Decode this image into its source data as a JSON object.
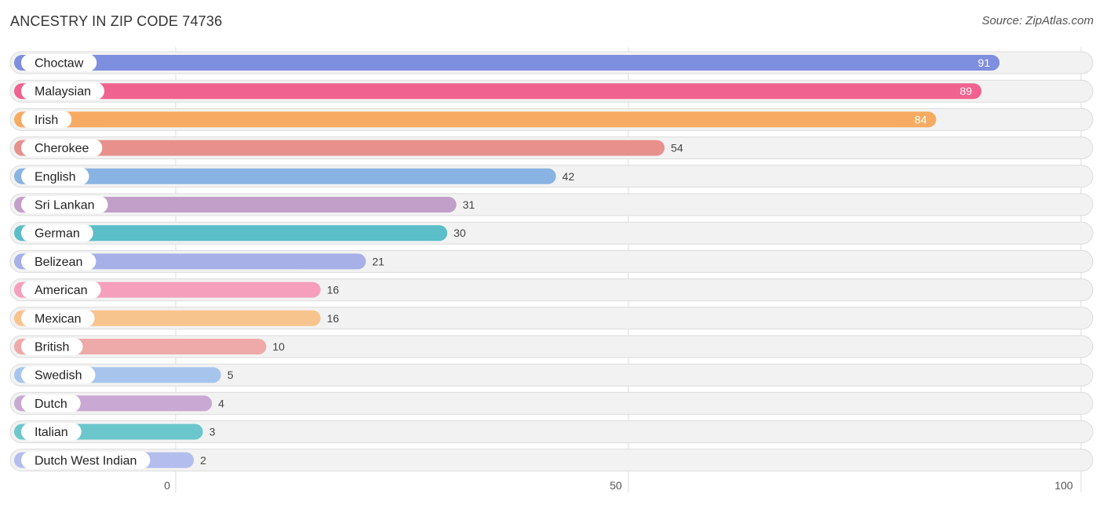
{
  "title": "ANCESTRY IN ZIP CODE 74736",
  "source": "Source: ZipAtlas.com",
  "chart_data": {
    "type": "bar",
    "orientation": "horizontal",
    "title": "ANCESTRY IN ZIP CODE 74736",
    "xlim": [
      0,
      100
    ],
    "ticks": [
      0,
      50,
      100
    ],
    "grid": true,
    "categories": [
      "Choctaw",
      "Malaysian",
      "Irish",
      "Cherokee",
      "English",
      "Sri Lankan",
      "German",
      "Belizean",
      "American",
      "Mexican",
      "British",
      "Swedish",
      "Dutch",
      "Italian",
      "Dutch West Indian"
    ],
    "values": [
      91,
      89,
      84,
      54,
      42,
      31,
      30,
      21,
      16,
      16,
      10,
      5,
      4,
      3,
      2
    ],
    "colors": [
      "#7f8fdf",
      "#f0628f",
      "#f7ab62",
      "#e8908c",
      "#88b3e2",
      "#c29fc8",
      "#5bbec8",
      "#a8b0e8",
      "#f59fbd",
      "#f8c48e",
      "#eeaaa8",
      "#a7c5ec",
      "#c9a8d3",
      "#6cc7cc",
      "#b3bdee"
    ]
  }
}
